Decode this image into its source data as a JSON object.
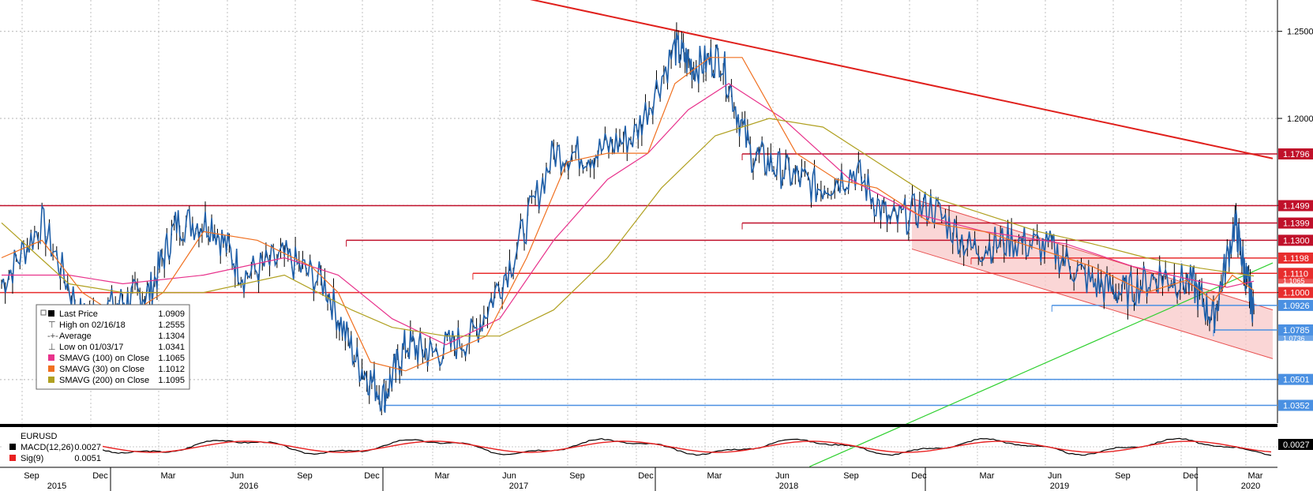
{
  "chart_data": [
    {
      "type": "line",
      "ticker": "EURUSD",
      "ylim": [
        1.025,
        1.268
      ],
      "yticks": [
        "1.2500",
        "1.2000",
        "1.1500",
        "1.1000",
        "1.0500"
      ],
      "x_months": [
        "Sep",
        "Dec",
        "Mar",
        "Jun",
        "Sep",
        "Dec",
        "Mar",
        "Jun",
        "Sep",
        "Dec",
        "Mar",
        "Jun",
        "Sep",
        "Dec",
        "Mar",
        "Jun",
        "Sep",
        "Dec",
        "Mar"
      ],
      "x_years": [
        "2015",
        "2016",
        "2017",
        "2018",
        "2019",
        "2020"
      ],
      "series": [
        {
          "name": "Last Price",
          "value": "1.0909",
          "color": "#1f5fa8",
          "x": [
            2015.55,
            2015.7,
            2015.85,
            2016.0,
            2016.1,
            2016.2,
            2016.33,
            2016.45,
            2016.6,
            2016.75,
            2016.87,
            2016.97,
            2017.05,
            2017.15,
            2017.3,
            2017.45,
            2017.6,
            2017.75,
            2017.9,
            2018.05,
            2018.12,
            2018.22,
            2018.33,
            2018.45,
            2018.58,
            2018.72,
            2018.85,
            2019.0,
            2019.15,
            2019.3,
            2019.45,
            2019.6,
            2019.72,
            2019.85,
            2019.97,
            2020.05,
            2020.13,
            2020.17,
            2020.2
          ],
          "y": [
            1.105,
            1.14,
            1.085,
            1.095,
            1.1,
            1.14,
            1.14,
            1.11,
            1.12,
            1.105,
            1.06,
            1.04,
            1.07,
            1.065,
            1.075,
            1.12,
            1.18,
            1.18,
            1.19,
            1.24,
            1.23,
            1.235,
            1.18,
            1.17,
            1.16,
            1.17,
            1.14,
            1.15,
            1.125,
            1.13,
            1.125,
            1.105,
            1.1,
            1.11,
            1.105,
            1.085,
            1.14,
            1.11,
            1.09
          ]
        },
        {
          "name": "SMAVG (100) on Close",
          "value": "1.1065",
          "color": "#e8338c",
          "x": [
            2015.55,
            2015.8,
            2016.0,
            2016.3,
            2016.6,
            2016.8,
            2017.0,
            2017.2,
            2017.4,
            2017.6,
            2017.8,
            2017.95,
            2018.1,
            2018.25,
            2018.45,
            2018.7,
            2018.95,
            2019.2,
            2019.5,
            2019.75,
            2019.95,
            2020.1,
            2020.2
          ],
          "y": [
            1.11,
            1.11,
            1.105,
            1.11,
            1.12,
            1.11,
            1.085,
            1.07,
            1.085,
            1.13,
            1.165,
            1.18,
            1.205,
            1.22,
            1.2,
            1.165,
            1.145,
            1.135,
            1.128,
            1.115,
            1.108,
            1.103,
            1.1065
          ]
        },
        {
          "name": "SMAVG (30) on Close",
          "value": "1.1012",
          "color": "#f07020",
          "x": [
            2015.55,
            2015.7,
            2015.85,
            2016.0,
            2016.15,
            2016.3,
            2016.5,
            2016.7,
            2016.8,
            2016.92,
            2017.05,
            2017.2,
            2017.35,
            2017.5,
            2017.65,
            2017.8,
            2017.95,
            2018.05,
            2018.18,
            2018.3,
            2018.5,
            2018.65,
            2018.8,
            2019.0,
            2019.2,
            2019.4,
            2019.6,
            2019.8,
            2019.95,
            2020.05,
            2020.12,
            2020.2
          ],
          "y": [
            1.12,
            1.13,
            1.1,
            1.085,
            1.1,
            1.135,
            1.13,
            1.115,
            1.1,
            1.06,
            1.055,
            1.065,
            1.075,
            1.12,
            1.175,
            1.18,
            1.18,
            1.22,
            1.235,
            1.235,
            1.18,
            1.165,
            1.16,
            1.14,
            1.135,
            1.125,
            1.115,
            1.1,
            1.107,
            1.095,
            1.11,
            1.1012
          ]
        },
        {
          "name": "SMAVG (200) on Close",
          "value": "1.1095",
          "color": "#b0a020",
          "x": [
            2015.55,
            2015.8,
            2016.0,
            2016.3,
            2016.6,
            2016.85,
            2017.0,
            2017.2,
            2017.4,
            2017.6,
            2017.8,
            2018.0,
            2018.2,
            2018.4,
            2018.6,
            2018.8,
            2019.0,
            2019.2,
            2019.4,
            2019.6,
            2019.8,
            2020.0,
            2020.2
          ],
          "y": [
            1.14,
            1.105,
            1.1,
            1.1,
            1.11,
            1.09,
            1.08,
            1.075,
            1.075,
            1.09,
            1.12,
            1.16,
            1.19,
            1.2,
            1.195,
            1.175,
            1.155,
            1.145,
            1.135,
            1.128,
            1.12,
            1.114,
            1.1095
          ]
        }
      ],
      "legend": {
        "last_price_label": "Last Price",
        "last_price_value": "1.0909",
        "high_label": "High on 02/16/18",
        "high_value": "1.2555",
        "average_label": "Average",
        "average_value": "1.1304",
        "low_label": "Low on 01/03/17",
        "low_value": "1.0341",
        "sma100_label": "SMAVG (100)  on Close",
        "sma100_value": "1.1065",
        "sma30_label": "SMAVG (30)  on Close",
        "sma30_value": "1.1012",
        "sma200_label": "SMAVG (200)  on Close",
        "sma200_value": "1.1095"
      },
      "horizontal_levels": [
        {
          "value": 1.1796,
          "label": "1.1796",
          "color": "#c0102a",
          "x_start": 2018.3
        },
        {
          "value": 1.1499,
          "label": "1.1499",
          "color": "#c0102a",
          "x_start": 2015.5
        },
        {
          "value": 1.1399,
          "label": "1.1399",
          "color": "#c0102a",
          "x_start": 2018.3
        },
        {
          "value": 1.13,
          "label": "1.1300",
          "color": "#c0102a",
          "x_start": 2016.83
        },
        {
          "value": 1.1198,
          "label": "1.1198",
          "color": "#e82d2d",
          "x_start": 2019.15
        },
        {
          "value": 1.111,
          "label": "1.1110",
          "color": "#e82d2d",
          "x_start": 2017.3
        },
        {
          "value": 1.1,
          "label": "1.1000",
          "color": "#e82d2d",
          "x_start": 2015.5
        },
        {
          "value": 1.0926,
          "label": "1.0926",
          "color": "#4a90e2",
          "x_start": 2019.45
        },
        {
          "value": 1.0785,
          "label": "1.0785",
          "color": "#4a90e2",
          "x_start": 2020.05
        },
        {
          "value": 1.0501,
          "label": "1.0501",
          "color": "#4a90e2",
          "x_start": 2016.97
        },
        {
          "value": 1.0352,
          "label": "1.0352",
          "color": "#4a90e2",
          "x_start": 2016.97
        }
      ],
      "hidden_labels": [
        "1.1065",
        "1.0736"
      ],
      "trendlines": [
        {
          "name": "downtrend",
          "color": "#e0201c",
          "x": [
            2017.48,
            2020.27
          ],
          "y": [
            1.2695,
            1.177
          ]
        },
        {
          "name": "uptrend",
          "color": "#30d030",
          "x": [
            2018.55,
            2020.27
          ],
          "y": [
            1.0,
            1.117
          ]
        }
      ],
      "channel": {
        "upper": {
          "x": [
            2018.93,
            2020.27
          ],
          "y": [
            1.154,
            1.09
          ]
        },
        "lower": {
          "x": [
            2018.93,
            2020.27
          ],
          "y": [
            1.125,
            1.062
          ]
        }
      }
    },
    {
      "type": "line",
      "ticker": "EURUSD",
      "ylim": [
        -0.02,
        0.02
      ],
      "series": [
        {
          "name": "MACD(12,26)",
          "value": "0.0027",
          "color": "#000000"
        },
        {
          "name": "Sig(9)",
          "value": "0.0051",
          "color": "#e82020"
        }
      ],
      "last_label": "0.0027"
    }
  ],
  "colors": {
    "price": "#1f5fa8",
    "grid": "#b0b0b0",
    "frame": "#000000",
    "panel": "#ffffff"
  }
}
